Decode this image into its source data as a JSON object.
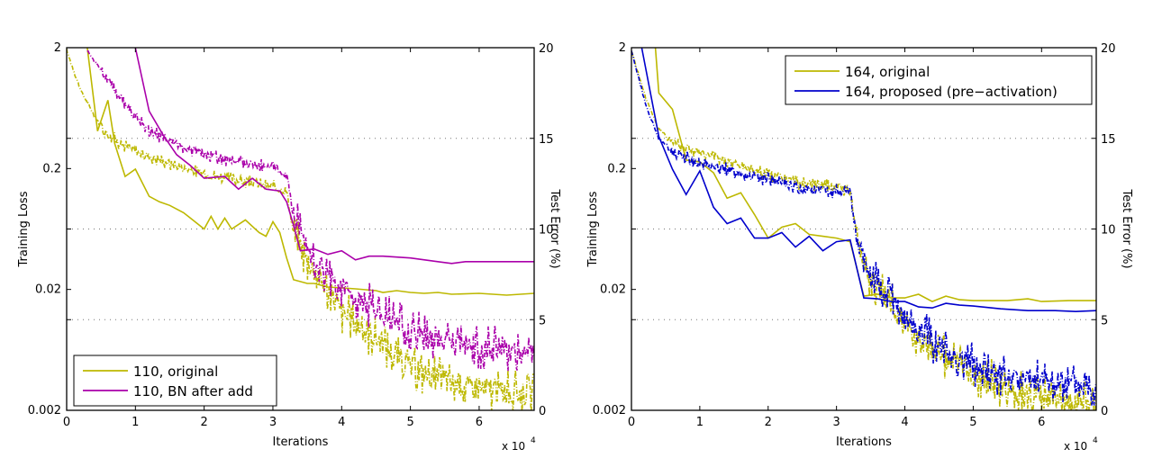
{
  "chart_data": [
    {
      "type": "line",
      "xlabel": "Iterations",
      "x_multiplier_label": "x 10",
      "x_multiplier_exp": "4",
      "ylabel_left": "Training Loss",
      "ylabel_right": "Test Error (%)",
      "xlim": [
        0,
        6.8
      ],
      "ylim_left": [
        0.002,
        2
      ],
      "yscale_left": "log",
      "ylim_right": [
        0,
        20
      ],
      "xticks": [
        "0",
        "1",
        "2",
        "3",
        "4",
        "5",
        "6"
      ],
      "yticks_left": [
        "2",
        "0.2",
        "0.02",
        "0.002"
      ],
      "yticks_right": [
        "20",
        "15",
        "10",
        "5",
        "0"
      ],
      "grid": "dotted horizontal at test error 5, 10, 15",
      "legend_position": "bottom-left",
      "series": [
        {
          "name": "110, original",
          "color": "#bdb800",
          "legend": true,
          "test_error": {
            "x": [
              0.3,
              0.45,
              0.6,
              0.7,
              0.85,
              1.0,
              1.2,
              1.35,
              1.5,
              1.7,
              1.8,
              2.0,
              2.1,
              2.2,
              2.3,
              2.4,
              2.6,
              2.8,
              2.9,
              3.0,
              3.1,
              3.2,
              3.3,
              3.5,
              3.6,
              3.8,
              4.0,
              4.2,
              4.5,
              4.6,
              4.8,
              5.0,
              5.2,
              5.4,
              5.6,
              6.0,
              6.2,
              6.4,
              6.6,
              6.8
            ],
            "y": [
              20.0,
              15.4,
              17.1,
              14.7,
              12.9,
              13.3,
              11.8,
              11.5,
              11.3,
              10.9,
              10.6,
              10.0,
              10.7,
              10.0,
              10.6,
              10.0,
              10.5,
              9.8,
              9.6,
              10.4,
              9.8,
              8.4,
              7.2,
              7.0,
              7.0,
              6.8,
              6.75,
              6.7,
              6.6,
              6.5,
              6.6,
              6.5,
              6.45,
              6.5,
              6.4,
              6.45,
              6.4,
              6.35,
              6.4,
              6.45
            ]
          },
          "training_loss": {
            "x": [
              0.0,
              0.2,
              0.4,
              0.6,
              0.8,
              1.0,
              1.5,
              2.0,
              2.5,
              3.0,
              3.2,
              3.3,
              3.5,
              3.8,
              4.0,
              4.5,
              5.0,
              5.5,
              6.0,
              6.5,
              6.8
            ],
            "y": [
              1.9,
              0.9,
              0.55,
              0.38,
              0.32,
              0.28,
              0.22,
              0.18,
              0.16,
              0.14,
              0.13,
              0.06,
              0.035,
              0.02,
              0.013,
              0.008,
              0.0045,
              0.0035,
              0.003,
              0.0028,
              0.0027
            ]
          }
        },
        {
          "name": "110, BN after add",
          "color": "#aa00aa",
          "legend": true,
          "test_error": {
            "x": [
              1.0,
              1.2,
              1.4,
              1.6,
              1.8,
              2.0,
              2.3,
              2.5,
              2.7,
              2.9,
              3.1,
              3.2,
              3.3,
              3.4,
              3.6,
              3.8,
              4.0,
              4.2,
              4.4,
              4.6,
              5.0,
              5.4,
              5.6,
              5.8,
              6.0,
              6.4,
              6.8
            ],
            "y": [
              20.0,
              16.5,
              15.2,
              14.1,
              13.5,
              12.8,
              12.9,
              12.2,
              12.8,
              12.2,
              12.1,
              11.5,
              10.2,
              8.8,
              8.9,
              8.6,
              8.8,
              8.3,
              8.5,
              8.5,
              8.4,
              8.2,
              8.1,
              8.2,
              8.2,
              8.2,
              8.2
            ]
          },
          "training_loss": {
            "x": [
              0.3,
              0.5,
              0.8,
              1.0,
              1.3,
              1.6,
              2.0,
              2.5,
              3.0,
              3.2,
              3.3,
              3.5,
              3.8,
              4.0,
              4.5,
              5.0,
              5.5,
              6.0,
              6.5,
              6.8
            ],
            "y": [
              1.9,
              1.3,
              0.75,
              0.52,
              0.38,
              0.32,
              0.26,
              0.23,
              0.2,
              0.19,
              0.08,
              0.045,
              0.025,
              0.02,
              0.014,
              0.009,
              0.0075,
              0.0068,
              0.0063,
              0.006
            ]
          }
        }
      ]
    },
    {
      "type": "line",
      "xlabel": "Iterations",
      "x_multiplier_label": "x 10",
      "x_multiplier_exp": "4",
      "ylabel_left": "Training Loss",
      "ylabel_right": "Test Error (%)",
      "xlim": [
        0,
        6.8
      ],
      "ylim_left": [
        0.002,
        2
      ],
      "yscale_left": "log",
      "ylim_right": [
        0,
        20
      ],
      "xticks": [
        "0",
        "1",
        "2",
        "3",
        "4",
        "5",
        "6"
      ],
      "yticks_left": [
        "2",
        "0.2",
        "0.02",
        "0.002"
      ],
      "yticks_right": [
        "20",
        "15",
        "10",
        "5",
        "0"
      ],
      "grid": "dotted horizontal at test error 5, 10, 15",
      "legend_position": "top-right",
      "series": [
        {
          "name": "164, original",
          "color": "#bdb800",
          "legend": true,
          "test_error": {
            "x": [
              0.35,
              0.4,
              0.6,
              0.8,
              1.0,
              1.2,
              1.4,
              1.6,
              1.8,
              2.0,
              2.2,
              2.4,
              2.6,
              2.8,
              3.0,
              3.2,
              3.4,
              3.6,
              3.8,
              4.0,
              4.2,
              4.4,
              4.6,
              4.8,
              5.0,
              5.5,
              5.8,
              6.0,
              6.4,
              6.8
            ],
            "y": [
              20.0,
              17.5,
              16.6,
              13.8,
              13.7,
              13.1,
              11.7,
              12.0,
              10.8,
              9.5,
              10.1,
              10.3,
              9.7,
              9.6,
              9.5,
              9.3,
              6.3,
              6.4,
              6.2,
              6.2,
              6.4,
              6.0,
              6.3,
              6.1,
              6.05,
              6.05,
              6.15,
              6.0,
              6.05,
              6.05
            ]
          },
          "training_loss": {
            "x": [
              0.0,
              0.2,
              0.4,
              0.6,
              0.8,
              1.0,
              1.5,
              2.0,
              2.5,
              3.0,
              3.2,
              3.3,
              3.5,
              3.8,
              4.0,
              4.5,
              5.0,
              5.5,
              6.0,
              6.5,
              6.8
            ],
            "y": [
              1.9,
              0.8,
              0.42,
              0.34,
              0.3,
              0.27,
              0.22,
              0.18,
              0.15,
              0.14,
              0.13,
              0.05,
              0.025,
              0.015,
              0.01,
              0.006,
              0.004,
              0.003,
              0.0025,
              0.0023,
              0.0023
            ]
          }
        },
        {
          "name": "164, proposed (pre-activation)",
          "color": "#0000cc",
          "legend": true,
          "test_error": {
            "x": [
              0.15,
              0.4,
              0.6,
              0.8,
              1.0,
              1.2,
              1.4,
              1.6,
              1.8,
              2.0,
              2.2,
              2.4,
              2.6,
              2.8,
              3.0,
              3.2,
              3.4,
              3.6,
              3.8,
              4.0,
              4.2,
              4.4,
              4.6,
              4.8,
              5.0,
              5.4,
              5.8,
              6.2,
              6.5,
              6.8
            ],
            "y": [
              20.0,
              15.1,
              13.3,
              11.9,
              13.2,
              11.2,
              10.3,
              10.6,
              9.5,
              9.5,
              9.8,
              9.0,
              9.6,
              8.8,
              9.3,
              9.4,
              6.2,
              6.15,
              6.0,
              6.0,
              5.7,
              5.65,
              5.9,
              5.8,
              5.75,
              5.6,
              5.5,
              5.5,
              5.45,
              5.5
            ]
          },
          "training_loss": {
            "x": [
              0.0,
              0.2,
              0.4,
              0.6,
              0.8,
              1.0,
              1.5,
              2.0,
              2.5,
              3.0,
              3.2,
              3.3,
              3.5,
              3.8,
              4.0,
              4.5,
              5.0,
              5.5,
              6.0,
              6.5,
              6.8
            ],
            "y": [
              1.9,
              0.7,
              0.35,
              0.28,
              0.25,
              0.22,
              0.19,
              0.16,
              0.14,
              0.13,
              0.13,
              0.05,
              0.025,
              0.016,
              0.011,
              0.007,
              0.0048,
              0.0038,
              0.0035,
              0.0033,
              0.0032
            ]
          }
        }
      ]
    }
  ]
}
